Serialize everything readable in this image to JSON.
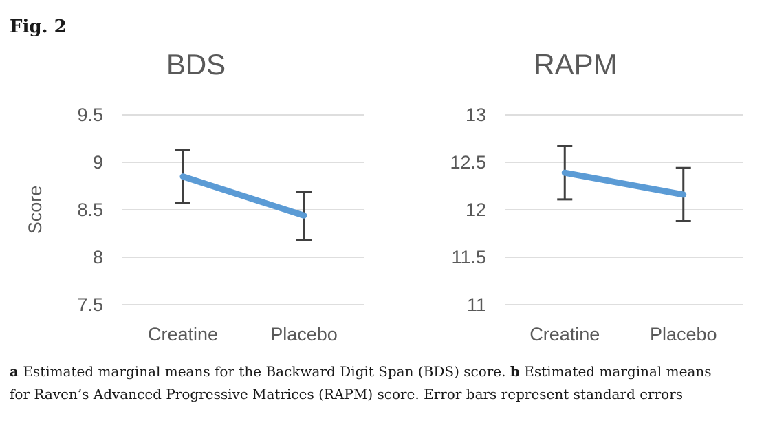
{
  "figure_label": "Fig. 2",
  "colors": {
    "line": "#5B9BD5",
    "error_bar": "#404040",
    "grid": "#D9D9D9",
    "chart_text": "#595959",
    "caption_text": "#1a1a1a",
    "background": "#ffffff"
  },
  "chart_data": [
    {
      "type": "line",
      "title": "BDS",
      "ylabel": "Score",
      "xlabel": "",
      "categories": [
        "Creatine",
        "Placebo"
      ],
      "series": [
        {
          "name": "Estimated marginal mean",
          "values": [
            8.85,
            8.44
          ],
          "error_upper": [
            9.13,
            8.69
          ],
          "error_lower": [
            8.57,
            8.18
          ]
        }
      ],
      "ytick_labels": [
        "9.5",
        "9",
        "8.5",
        "8",
        "7.5"
      ],
      "ylim": [
        7.5,
        9.5
      ],
      "grid": true,
      "legend": false
    },
    {
      "type": "line",
      "title": "RAPM",
      "ylabel": "",
      "xlabel": "",
      "categories": [
        "Creatine",
        "Placebo"
      ],
      "series": [
        {
          "name": "Estimated marginal mean",
          "values": [
            12.39,
            12.16
          ],
          "error_upper": [
            12.67,
            12.44
          ],
          "error_lower": [
            12.11,
            11.88
          ]
        }
      ],
      "ytick_labels": [
        "13",
        "12.5",
        "12",
        "11.5",
        "11"
      ],
      "ylim": [
        11,
        13
      ],
      "grid": true,
      "legend": false
    }
  ],
  "caption": {
    "a_label": "a",
    "a_text": " Estimated marginal means for the Backward Digit Span (BDS) score. ",
    "b_label": "b",
    "b_text_line1": " Estimated marginal means",
    "b_text_line2": "for Raven’s Advanced Progressive Matrices (RAPM) score. Error bars represent standard errors"
  }
}
